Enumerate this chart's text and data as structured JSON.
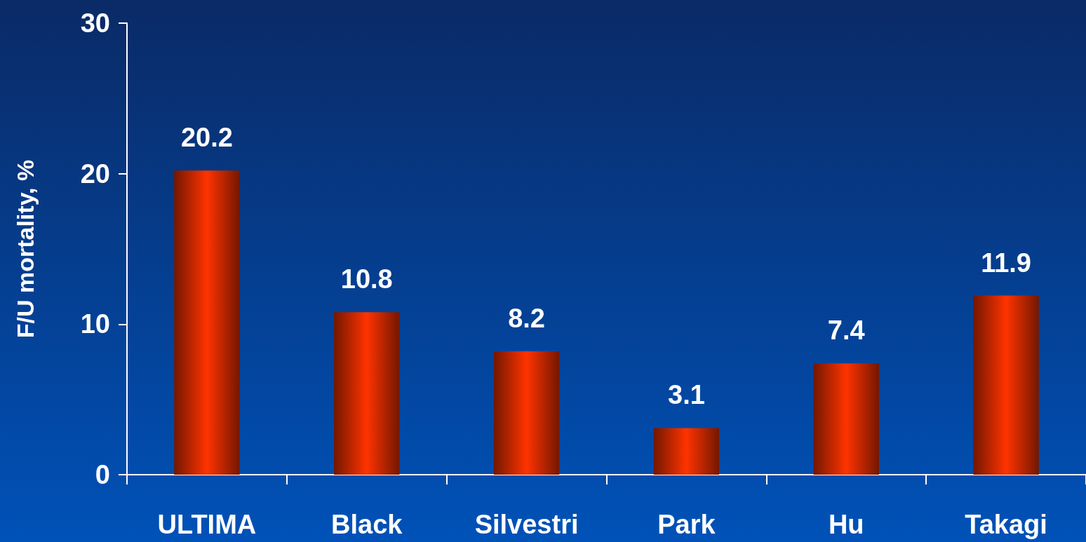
{
  "chart_data": {
    "type": "bar",
    "ylabel": "F/U mortality, %",
    "categories": [
      "ULTIMA",
      "Black",
      "Silvestri",
      "Park",
      "Hu",
      "Takagi"
    ],
    "values": [
      20.2,
      10.8,
      8.2,
      3.1,
      7.4,
      11.9
    ],
    "color": "#ff3300",
    "ylim": [
      0,
      30
    ],
    "yticks": [
      0,
      10,
      20,
      30
    ],
    "grid": false,
    "data_labels": true
  }
}
